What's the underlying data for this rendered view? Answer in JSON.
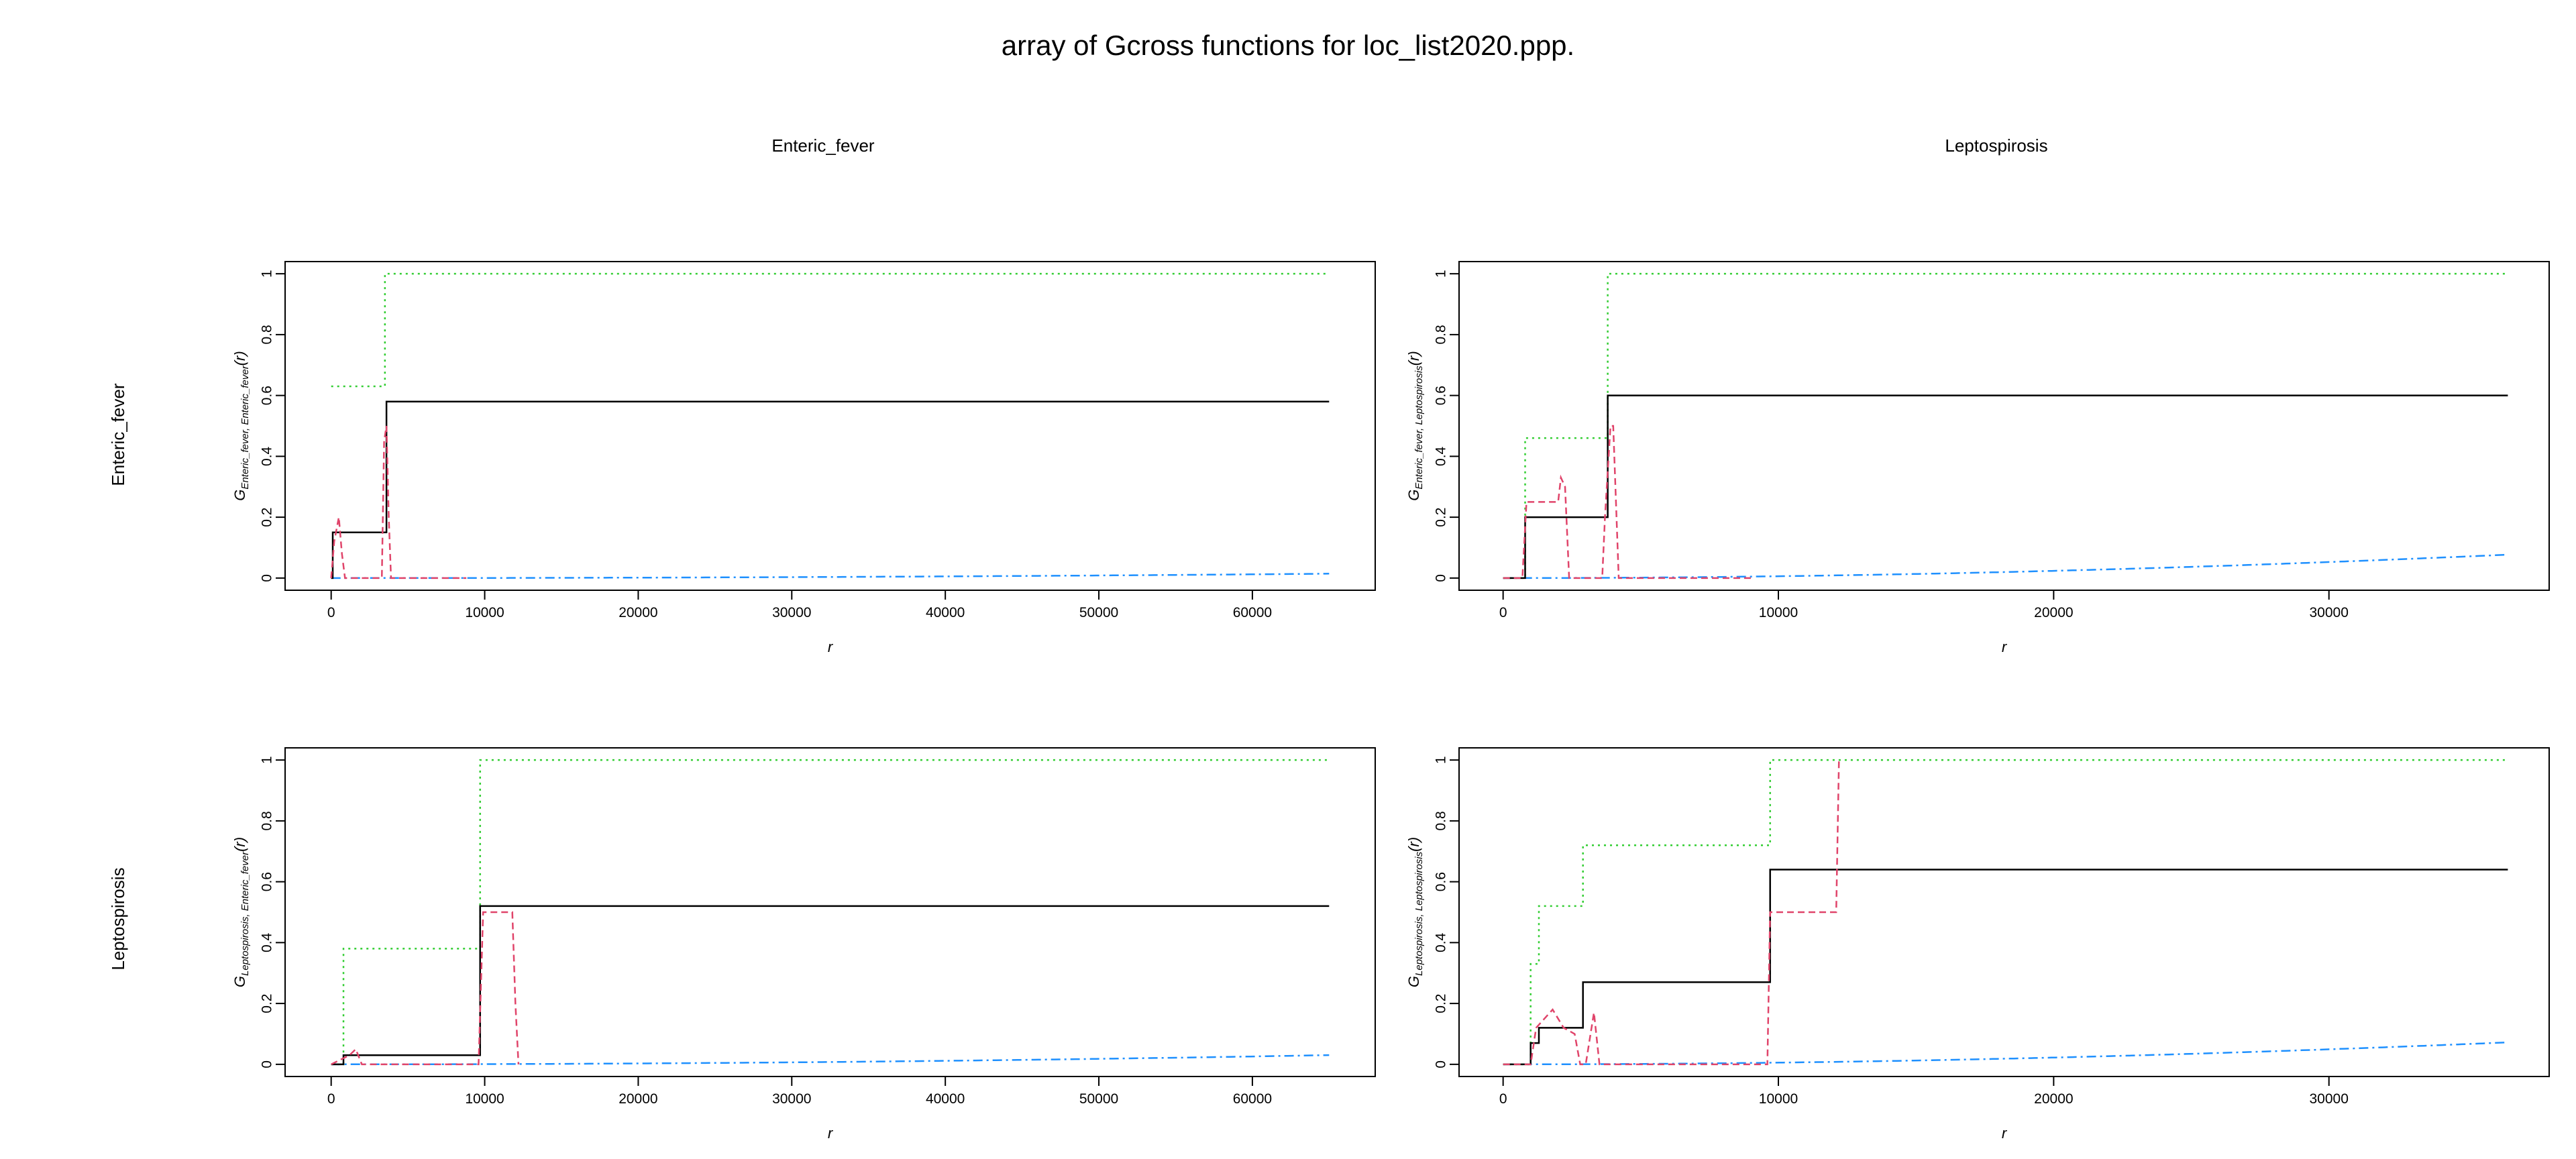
{
  "title": "array of Gcross functions for loc_list2020.ppp.",
  "columns": [
    "Enteric_fever",
    "Leptospirosis"
  ],
  "rows": [
    "Enteric_fever",
    "Leptospirosis"
  ],
  "line_colors": {
    "obs": "#000000",
    "theo": "#1E90FF",
    "han": "#E0446A",
    "km": "#32CD32"
  },
  "chart_data": [
    {
      "type": "line",
      "xlabel": "r",
      "ylabel_main": "G",
      "ylabel_sub": "Enteric_fever, Enteric_fever",
      "ylabel_tail": "(r)",
      "xlim": [
        -3000,
        68000
      ],
      "ylim": [
        -0.04,
        1.04
      ],
      "xticks": [
        0,
        10000,
        20000,
        30000,
        40000,
        50000,
        60000
      ],
      "yticks": [
        0.0,
        0.2,
        0.4,
        0.6,
        0.8,
        1.0
      ],
      "theo_scale": 1.85e-06,
      "theo_xmax": 65000,
      "series": [
        {
          "key": "km",
          "dash": "3,6",
          "x": [
            0,
            3500,
            3500,
            65000
          ],
          "y": [
            0.63,
            0.63,
            1.0,
            1.0
          ]
        },
        {
          "key": "obs",
          "dash": "",
          "x": [
            0,
            100,
            100,
            3600,
            3600,
            65000
          ],
          "y": [
            0,
            0,
            0.15,
            0.15,
            0.58,
            0.58
          ]
        },
        {
          "key": "han",
          "dash": "10,6",
          "x": [
            0,
            200,
            500,
            700,
            900,
            3300,
            3450,
            3600,
            3750,
            3900,
            8800
          ],
          "y": [
            0,
            0.12,
            0.2,
            0.08,
            0,
            0,
            0.45,
            0.5,
            0.2,
            0,
            0
          ]
        }
      ]
    },
    {
      "type": "line",
      "xlabel": "r",
      "ylabel_main": "G",
      "ylabel_sub": "Enteric_fever, Leptospirosis",
      "ylabel_tail": "(r)",
      "xlim": [
        -1600,
        38000
      ],
      "ylim": [
        -0.04,
        1.04
      ],
      "xticks": [
        0,
        10000,
        20000,
        30000
      ],
      "yticks": [
        0.0,
        0.2,
        0.4,
        0.6,
        0.8,
        1.0
      ],
      "theo_scale": 7.75e-06,
      "theo_xmax": 36500,
      "series": [
        {
          "key": "km",
          "dash": "3,6",
          "x": [
            0,
            800,
            800,
            3800,
            3800,
            36500
          ],
          "y": [
            0,
            0,
            0.46,
            0.46,
            1.0,
            1.0
          ]
        },
        {
          "key": "obs",
          "dash": "",
          "x": [
            0,
            800,
            800,
            3800,
            3800,
            36500
          ],
          "y": [
            0,
            0,
            0.2,
            0.2,
            0.6,
            0.6
          ]
        },
        {
          "key": "han",
          "dash": "10,6",
          "x": [
            0,
            700,
            850,
            1000,
            1100,
            2000,
            2100,
            2250,
            2400,
            3600,
            3700,
            3900,
            4000,
            4200,
            9000
          ],
          "y": [
            0,
            0,
            0.25,
            0.25,
            0.25,
            0.25,
            0.33,
            0.3,
            0,
            0,
            0.2,
            0.5,
            0.5,
            0,
            0
          ]
        }
      ]
    },
    {
      "type": "line",
      "xlabel": "r",
      "ylabel_main": "G",
      "ylabel_sub": "Leptospirosis, Enteric_fever",
      "ylabel_tail": "(r)",
      "xlim": [
        -3000,
        68000
      ],
      "ylim": [
        -0.04,
        1.04
      ],
      "xticks": [
        0,
        10000,
        20000,
        30000,
        40000,
        50000,
        60000
      ],
      "yticks": [
        0.0,
        0.2,
        0.4,
        0.6,
        0.8,
        1.0
      ],
      "theo_scale": 2.7e-06,
      "theo_xmax": 65000,
      "series": [
        {
          "key": "km",
          "dash": "3,6",
          "x": [
            0,
            800,
            800,
            9700,
            9700,
            65000
          ],
          "y": [
            0,
            0,
            0.38,
            0.38,
            1.0,
            1.0
          ]
        },
        {
          "key": "obs",
          "dash": "",
          "x": [
            0,
            800,
            800,
            9700,
            9700,
            65000
          ],
          "y": [
            0,
            0,
            0.03,
            0.03,
            0.52,
            0.52
          ]
        },
        {
          "key": "han",
          "dash": "10,6",
          "x": [
            0,
            1200,
            1600,
            2000,
            9600,
            9900,
            11800,
            12000,
            12200
          ],
          "y": [
            0,
            0.03,
            0.05,
            0,
            0,
            0.5,
            0.5,
            0.2,
            0
          ]
        }
      ]
    },
    {
      "type": "line",
      "xlabel": "r",
      "ylabel_main": "G",
      "ylabel_sub": "Leptospirosis, Leptospirosis",
      "ylabel_tail": "(r)",
      "xlim": [
        -1600,
        38000
      ],
      "ylim": [
        -0.04,
        1.04
      ],
      "xticks": [
        0,
        10000,
        20000,
        30000
      ],
      "yticks": [
        0.0,
        0.2,
        0.4,
        0.6,
        0.8,
        1.0
      ],
      "theo_scale": 7.5e-06,
      "theo_xmax": 36500,
      "series": [
        {
          "key": "km",
          "dash": "3,6",
          "x": [
            0,
            1000,
            1000,
            1300,
            1300,
            2900,
            2900,
            9700,
            9700,
            36500
          ],
          "y": [
            0,
            0,
            0.33,
            0.33,
            0.52,
            0.52,
            0.72,
            0.72,
            1.0,
            1.0
          ]
        },
        {
          "key": "obs",
          "dash": "",
          "x": [
            0,
            1000,
            1000,
            1300,
            1300,
            2900,
            2900,
            9700,
            9700,
            36500
          ],
          "y": [
            0,
            0,
            0.07,
            0.07,
            0.12,
            0.12,
            0.27,
            0.27,
            0.64,
            0.64
          ]
        },
        {
          "key": "han",
          "dash": "10,6",
          "x": [
            0,
            1000,
            1200,
            1500,
            1800,
            2200,
            2600,
            2800,
            3000,
            3300,
            3500,
            9600,
            9700,
            12100,
            12200
          ],
          "y": [
            0,
            0,
            0.12,
            0.15,
            0.18,
            0.12,
            0.1,
            0,
            0,
            0.17,
            0,
            0,
            0.5,
            0.5,
            1.0
          ]
        }
      ]
    }
  ]
}
